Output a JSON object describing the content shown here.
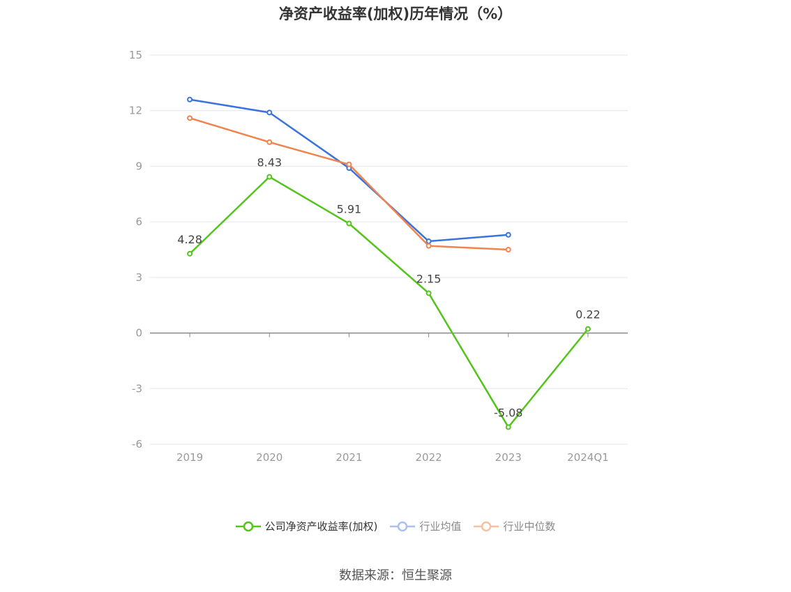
{
  "chart_data": {
    "type": "line",
    "title": "净资产收益率(加权)历年情况（%）",
    "categories": [
      "2019",
      "2020",
      "2021",
      "2022",
      "2023",
      "2024Q1"
    ],
    "ylim": [
      -6,
      15
    ],
    "yticks": [
      -6,
      -3,
      0,
      3,
      6,
      9,
      12,
      15
    ],
    "grid": true,
    "legend_position": "bottom",
    "series": [
      {
        "name": "公司净资产收益率(加权)",
        "color": "#52c41a",
        "values": [
          4.28,
          8.43,
          5.91,
          2.15,
          -5.08,
          0.22
        ],
        "labels": [
          "4.28",
          "8.43",
          "5.91",
          "2.15",
          "-5.08",
          "0.22"
        ]
      },
      {
        "name": "行业均值",
        "color": "#3a73d9",
        "values": [
          12.6,
          11.9,
          8.9,
          4.95,
          5.3,
          null
        ]
      },
      {
        "name": "行业中位数",
        "color": "#f0844e",
        "values": [
          11.6,
          10.3,
          9.1,
          4.7,
          4.5,
          null
        ]
      }
    ],
    "source": "数据来源：恒生聚源"
  }
}
